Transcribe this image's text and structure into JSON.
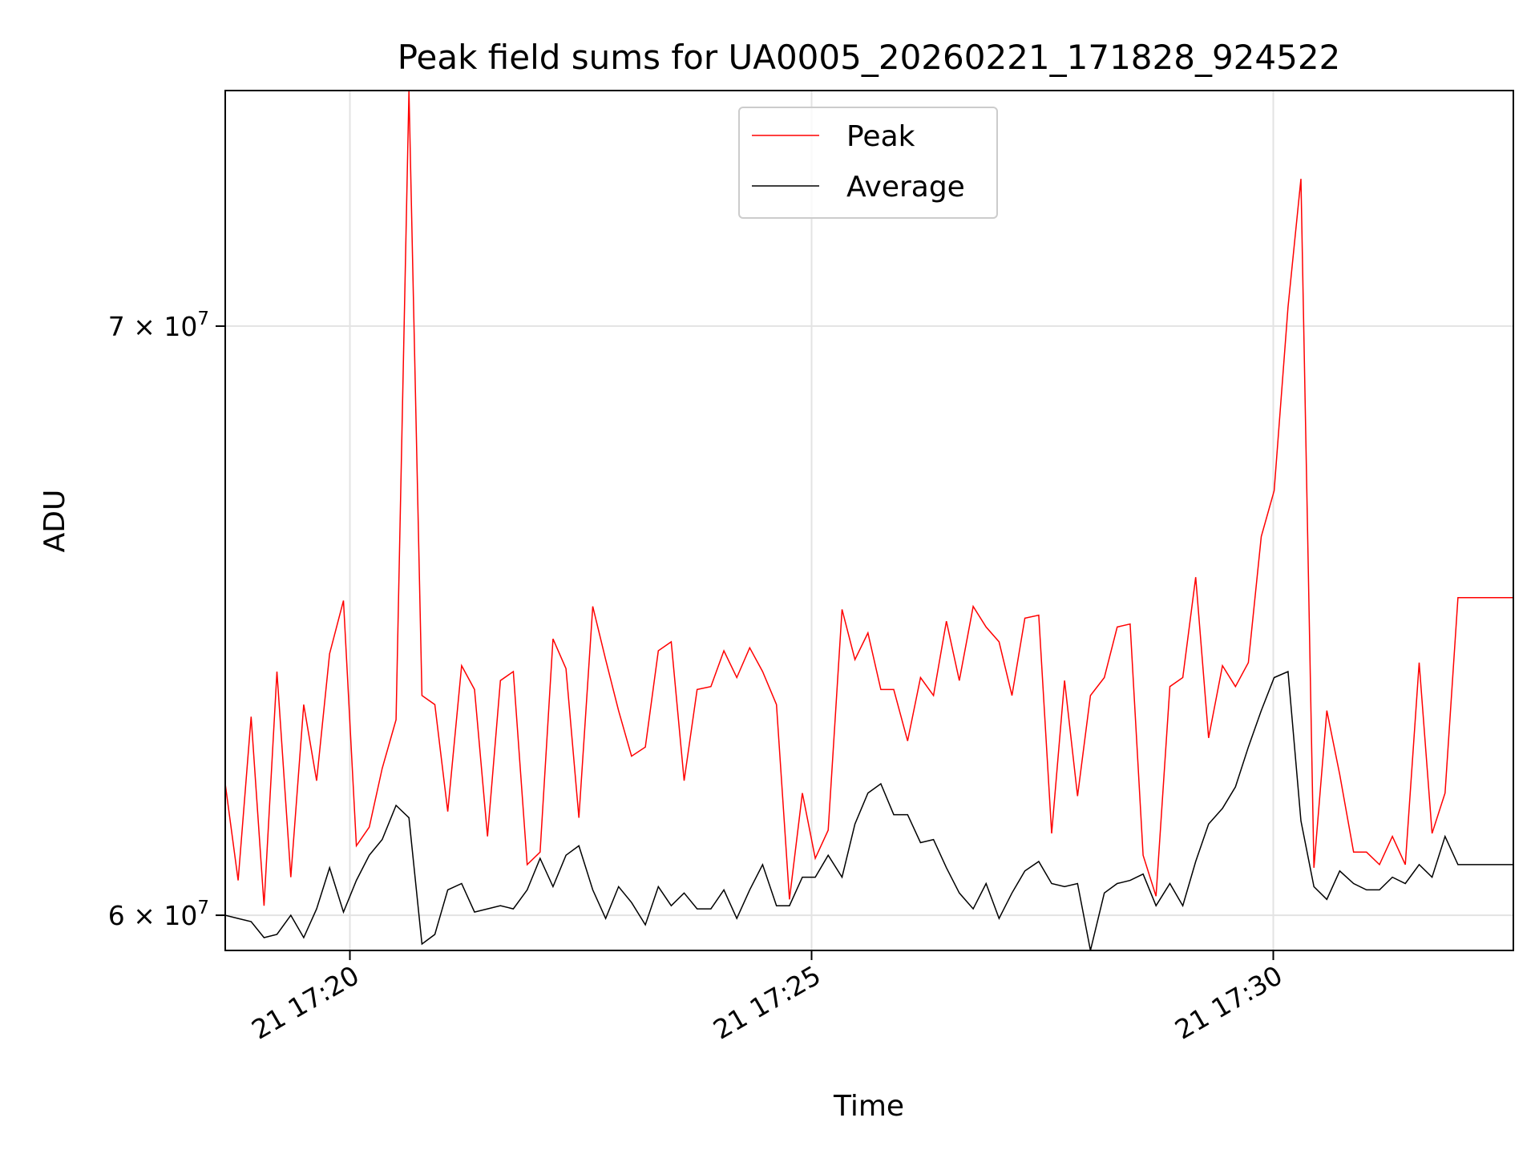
{
  "chart_data": {
    "type": "line",
    "title": "Peak field sums for UA0005_20260221_171828_924522",
    "xlabel": "Time",
    "ylabel": "ADU",
    "yscale": "log",
    "x_unit": "minutes since 21 17:00",
    "xlim": [
      18.65,
      32.6
    ],
    "ylim": [
      59450000,
      74450000
    ],
    "grid": true,
    "legend_location": "upper center",
    "x_ticks": [
      {
        "value": 20,
        "label": "21 17:20"
      },
      {
        "value": 25,
        "label": "21 17:25"
      },
      {
        "value": 30,
        "label": "21 17:30"
      }
    ],
    "y_ticks": [
      {
        "value": 60000000,
        "mantissa": "6",
        "exponent": "7"
      },
      {
        "value": 70000000,
        "mantissa": "7",
        "exponent": "7"
      }
    ],
    "series": [
      {
        "name": "Peak",
        "color": "#ff0000",
        "x": [
          18.65,
          18.79,
          18.93,
          19.07,
          19.21,
          19.36,
          19.5,
          19.64,
          19.78,
          19.93,
          20.07,
          20.21,
          20.35,
          20.5,
          20.64,
          20.78,
          20.92,
          21.06,
          21.21,
          21.35,
          21.49,
          21.63,
          21.77,
          21.92,
          22.06,
          22.2,
          22.34,
          22.48,
          22.63,
          22.77,
          22.91,
          23.05,
          23.2,
          23.34,
          23.48,
          23.62,
          23.76,
          23.91,
          24.05,
          24.19,
          24.33,
          24.47,
          24.62,
          24.76,
          24.9,
          25.04,
          25.18,
          25.33,
          25.47,
          25.61,
          25.75,
          25.89,
          26.04,
          26.18,
          26.32,
          26.46,
          26.6,
          26.75,
          26.89,
          27.03,
          27.17,
          27.31,
          27.46,
          27.6,
          27.74,
          27.88,
          28.02,
          28.17,
          28.31,
          28.45,
          28.59,
          28.73,
          28.88,
          29.02,
          29.16,
          29.3,
          29.45,
          29.59,
          29.73,
          29.87,
          30.01,
          30.16,
          30.3,
          30.44,
          30.58,
          30.72,
          30.87,
          31.01,
          31.15,
          31.29,
          31.43,
          31.58,
          31.72,
          31.86,
          32.0,
          32.6
        ],
        "values": [
          62100000,
          60550000,
          63200000,
          60150000,
          63950000,
          60600000,
          63400000,
          62150000,
          64250000,
          65150000,
          61100000,
          61400000,
          62350000,
          63150000,
          74450000,
          63550000,
          63400000,
          61650000,
          64050000,
          63650000,
          61250000,
          63800000,
          63950000,
          60800000,
          61000000,
          64500000,
          64000000,
          61550000,
          65050000,
          64150000,
          63300000,
          62550000,
          62700000,
          64300000,
          64450000,
          62150000,
          63650000,
          63700000,
          64300000,
          63850000,
          64350000,
          63950000,
          63400000,
          60250000,
          61950000,
          60900000,
          61350000,
          65000000,
          64150000,
          64600000,
          63650000,
          63650000,
          62800000,
          63850000,
          63550000,
          64800000,
          63800000,
          65050000,
          64700000,
          64450000,
          63550000,
          64850000,
          64900000,
          61300000,
          63800000,
          61900000,
          63550000,
          63850000,
          64700000,
          64750000,
          60950000,
          60300000,
          63700000,
          63850000,
          65550000,
          62850000,
          64050000,
          63700000,
          64100000,
          66250000,
          67050000,
          70350000,
          72750000,
          60750000,
          63300000,
          62250000,
          61000000,
          61000000,
          60800000,
          61250000,
          60800000,
          64100000,
          61300000,
          61950000,
          65200000,
          65200000
        ]
      },
      {
        "name": "Average",
        "color": "#000000",
        "x": [
          18.65,
          18.79,
          18.93,
          19.07,
          19.21,
          19.36,
          19.5,
          19.64,
          19.78,
          19.93,
          20.07,
          20.21,
          20.35,
          20.5,
          20.64,
          20.78,
          20.92,
          21.06,
          21.21,
          21.35,
          21.49,
          21.63,
          21.77,
          21.92,
          22.06,
          22.2,
          22.34,
          22.48,
          22.63,
          22.77,
          22.91,
          23.05,
          23.2,
          23.34,
          23.48,
          23.62,
          23.76,
          23.91,
          24.05,
          24.19,
          24.33,
          24.47,
          24.62,
          24.76,
          24.9,
          25.04,
          25.18,
          25.33,
          25.47,
          25.61,
          25.75,
          25.89,
          26.04,
          26.18,
          26.32,
          26.46,
          26.6,
          26.75,
          26.89,
          27.03,
          27.17,
          27.31,
          27.46,
          27.6,
          27.74,
          27.88,
          28.02,
          28.17,
          28.31,
          28.45,
          28.59,
          28.73,
          28.88,
          29.02,
          29.16,
          29.3,
          29.45,
          29.59,
          29.73,
          29.87,
          30.01,
          30.16,
          30.3,
          30.44,
          30.58,
          30.72,
          30.87,
          31.01,
          31.15,
          31.29,
          31.43,
          31.58,
          31.72,
          31.86,
          32.0,
          32.6
        ],
        "values": [
          60000000,
          59950000,
          59900000,
          59650000,
          59700000,
          60000000,
          59650000,
          60100000,
          60750000,
          60050000,
          60550000,
          60950000,
          61200000,
          61750000,
          61550000,
          59550000,
          59700000,
          60400000,
          60500000,
          60050000,
          60100000,
          60150000,
          60100000,
          60400000,
          60900000,
          60450000,
          60950000,
          61100000,
          60400000,
          59950000,
          60450000,
          60200000,
          59850000,
          60450000,
          60150000,
          60350000,
          60100000,
          60100000,
          60400000,
          59950000,
          60400000,
          60800000,
          60150000,
          60150000,
          60600000,
          60600000,
          60950000,
          60600000,
          61450000,
          61950000,
          62100000,
          61600000,
          61600000,
          61150000,
          61200000,
          60750000,
          60350000,
          60100000,
          60500000,
          59950000,
          60350000,
          60700000,
          60850000,
          60500000,
          60450000,
          60500000,
          59450000,
          60350000,
          60500000,
          60550000,
          60650000,
          60150000,
          60500000,
          60150000,
          60850000,
          61450000,
          61700000,
          62050000,
          62700000,
          63300000,
          63850000,
          63950000,
          61500000,
          60450000,
          60250000,
          60700000,
          60500000,
          60400000,
          60400000,
          60600000,
          60500000,
          60800000,
          60600000,
          61250000,
          60800000,
          60800000
        ]
      }
    ]
  }
}
